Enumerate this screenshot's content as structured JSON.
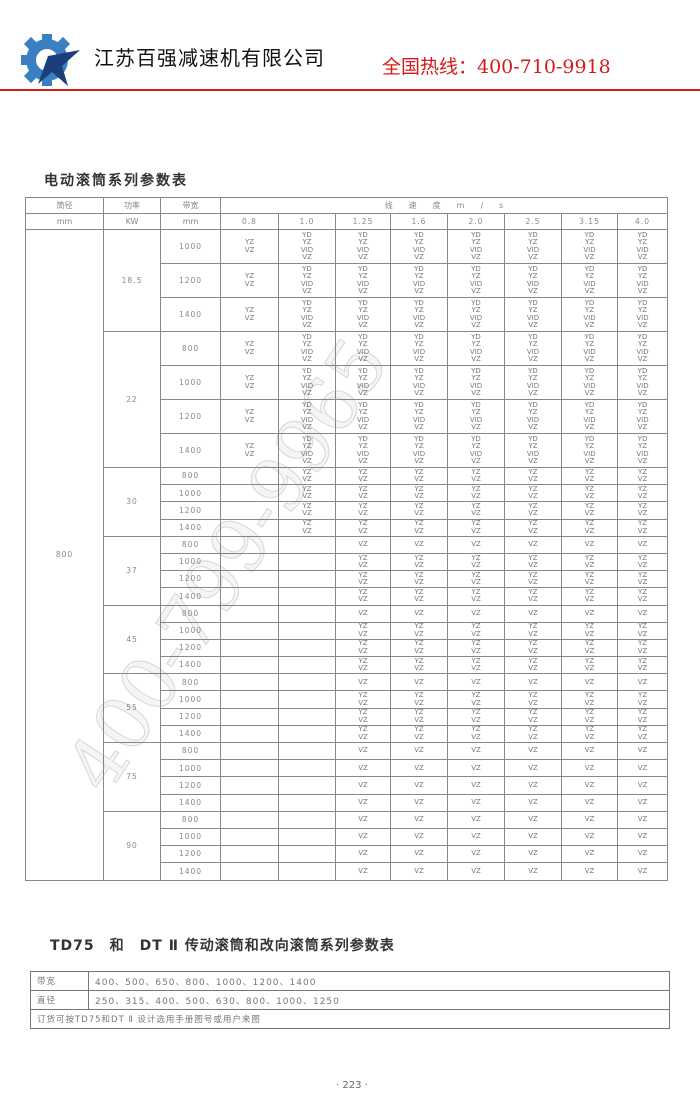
{
  "header": {
    "company": "江苏百强减速机有限公司",
    "hotline": "全国热线：400-710-9918",
    "brand_color": "#d51a1a",
    "logo_colors": [
      "#3a7fc2",
      "#1b3f7a"
    ]
  },
  "table1": {
    "title": "电动滚筒系列参数表",
    "headers": {
      "diameter": "筒径",
      "diameter_unit": "mm",
      "power": "功率",
      "power_unit": "KW",
      "width": "带宽",
      "width_unit": "mm",
      "speed": "线　　速　　度　　m　　/　　s"
    },
    "speeds": [
      "0.8",
      "1.0",
      "1.25",
      "1.6",
      "2.0",
      "2.5",
      "3.15",
      "4.0"
    ],
    "diameter": "800",
    "groups": [
      {
        "kw": "18.5",
        "rows": [
          {
            "width": "1000",
            "cells": [
              "YZ\nVZ",
              "YD\nYZ\nVID\nVZ",
              "YD\nYZ\nVID\nVZ",
              "YD\nYZ\nVID\nVZ",
              "YD\nYZ\nVID\nVZ",
              "YD\nYZ\nVID\nVZ",
              "YD\nYZ\nVID\nVZ",
              "YD\nYZ\nVID\nVZ"
            ]
          },
          {
            "width": "1200",
            "cells": [
              "YZ\nVZ",
              "YD\nYZ\nVID\nVZ",
              "YD\nYZ\nVID\nVZ",
              "YD\nYZ\nVID\nVZ",
              "YD\nYZ\nVID\nVZ",
              "YD\nYZ\nVID\nVZ",
              "YD\nYZ\nVID\nVZ",
              "YD\nYZ\nVID\nVZ"
            ]
          },
          {
            "width": "1400",
            "cells": [
              "YZ\nVZ",
              "YD\nYZ\nVID\nVZ",
              "YD\nYZ\nVID\nVZ",
              "YD\nYZ\nVID\nVZ",
              "YD\nYZ\nVID\nVZ",
              "YD\nYZ\nVID\nVZ",
              "YD\nYZ\nVID\nVZ",
              "YD\nYZ\nVID\nVZ"
            ]
          }
        ]
      },
      {
        "kw": "22",
        "rows": [
          {
            "width": "800",
            "cells": [
              "YZ\nVZ",
              "YD\nYZ\nVID\nVZ",
              "YD\nYZ\nVID\nVZ",
              "YD\nYZ\nVID\nVZ",
              "YD\nYZ\nVID\nVZ",
              "YD\nYZ\nVID\nVZ",
              "YD\nYZ\nVID\nVZ",
              "YD\nYZ\nVID\nVZ"
            ]
          },
          {
            "width": "1000",
            "cells": [
              "YZ\nVZ",
              "YD\nYZ\nVID\nVZ",
              "YD\nYZ\nVID\nVZ",
              "YD\nYZ\nVID\nVZ",
              "YD\nYZ\nVID\nVZ",
              "YD\nYZ\nVID\nVZ",
              "YD\nYZ\nVID\nVZ",
              "YD\nYZ\nVID\nVZ"
            ]
          },
          {
            "width": "1200",
            "cells": [
              "YZ\nVZ",
              "YD\nYZ\nVID\nVZ",
              "YD\nYZ\nVID\nVZ",
              "YD\nYZ\nVID\nVZ",
              "YD\nYZ\nVID\nVZ",
              "YD\nYZ\nVID\nVZ",
              "YD\nYZ\nVID\nVZ",
              "YD\nYZ\nVID\nVZ"
            ]
          },
          {
            "width": "1400",
            "cells": [
              "YZ\nVZ",
              "YD\nYZ\nVID\nVZ",
              "YD\nYZ\nVID\nVZ",
              "YD\nYZ\nVID\nVZ",
              "YD\nYZ\nVID\nVZ",
              "YD\nYZ\nVID\nVZ",
              "YD\nYZ\nVID\nVZ",
              "YD\nYZ\nVID\nVZ"
            ]
          }
        ]
      },
      {
        "kw": "30",
        "rows": [
          {
            "width": "800",
            "cells": [
              "",
              "YZ\nVZ",
              "YZ\nVZ",
              "YZ\nVZ",
              "YZ\nVZ",
              "YZ\nVZ",
              "YZ\nVZ",
              "YZ\nVZ"
            ]
          },
          {
            "width": "1000",
            "cells": [
              "",
              "YZ\nVZ",
              "YZ\nVZ",
              "YZ\nVZ",
              "YZ\nVZ",
              "YZ\nVZ",
              "YZ\nVZ",
              "YZ\nVZ"
            ]
          },
          {
            "width": "1200",
            "cells": [
              "",
              "YZ\nVZ",
              "YZ\nVZ",
              "YZ\nVZ",
              "YZ\nVZ",
              "YZ\nVZ",
              "YZ\nVZ",
              "YZ\nVZ"
            ]
          },
          {
            "width": "1400",
            "cells": [
              "",
              "YZ\nVZ",
              "YZ\nVZ",
              "YZ\nVZ",
              "YZ\nVZ",
              "YZ\nVZ",
              "YZ\nVZ",
              "YZ\nVZ"
            ]
          }
        ]
      },
      {
        "kw": "37",
        "rows": [
          {
            "width": "800",
            "cells": [
              "",
              "",
              "VZ",
              "VZ",
              "VZ",
              "VZ",
              "VZ",
              "VZ"
            ]
          },
          {
            "width": "1000",
            "cells": [
              "",
              "",
              "YZ\nVZ",
              "YZ\nVZ",
              "YZ\nVZ",
              "YZ\nVZ",
              "YZ\nVZ",
              "YZ\nVZ"
            ]
          },
          {
            "width": "1200",
            "cells": [
              "",
              "",
              "YZ\nVZ",
              "YZ\nVZ",
              "YZ\nVZ",
              "YZ\nVZ",
              "YZ\nVZ",
              "YZ\nVZ"
            ]
          },
          {
            "width": "1400",
            "cells": [
              "",
              "",
              "YZ\nVZ",
              "YZ\nVZ",
              "YZ\nVZ",
              "YZ\nVZ",
              "YZ\nVZ",
              "YZ\nVZ"
            ]
          }
        ]
      },
      {
        "kw": "45",
        "rows": [
          {
            "width": "800",
            "cells": [
              "",
              "",
              "VZ",
              "VZ",
              "VZ",
              "VZ",
              "VZ",
              "VZ"
            ]
          },
          {
            "width": "1000",
            "cells": [
              "",
              "",
              "YZ\nVZ",
              "YZ\nVZ",
              "YZ\nVZ",
              "YZ\nVZ",
              "YZ\nVZ",
              "YZ\nVZ"
            ]
          },
          {
            "width": "1200",
            "cells": [
              "",
              "",
              "YZ\nVZ",
              "YZ\nVZ",
              "YZ\nVZ",
              "YZ\nVZ",
              "YZ\nVZ",
              "YZ\nVZ"
            ]
          },
          {
            "width": "1400",
            "cells": [
              "",
              "",
              "YZ\nVZ",
              "YZ\nVZ",
              "YZ\nVZ",
              "YZ\nVZ",
              "YZ\nVZ",
              "YZ\nVZ"
            ]
          }
        ]
      },
      {
        "kw": "55",
        "rows": [
          {
            "width": "800",
            "cells": [
              "",
              "",
              "VZ",
              "VZ",
              "VZ",
              "VZ",
              "VZ",
              "VZ"
            ]
          },
          {
            "width": "1000",
            "cells": [
              "",
              "",
              "YZ\nVZ",
              "YZ\nVZ",
              "YZ\nVZ",
              "YZ\nVZ",
              "YZ\nVZ",
              "YZ\nVZ"
            ]
          },
          {
            "width": "1200",
            "cells": [
              "",
              "",
              "YZ\nVZ",
              "YZ\nVZ",
              "YZ\nVZ",
              "YZ\nVZ",
              "YZ\nVZ",
              "YZ\nVZ"
            ]
          },
          {
            "width": "1400",
            "cells": [
              "",
              "",
              "YZ\nVZ",
              "YZ\nVZ",
              "YZ\nVZ",
              "YZ\nVZ",
              "YZ\nVZ",
              "YZ\nVZ"
            ]
          }
        ]
      },
      {
        "kw": "75",
        "rows": [
          {
            "width": "800",
            "cells": [
              "",
              "",
              "VZ",
              "VZ",
              "VZ",
              "VZ",
              "VZ",
              "VZ"
            ]
          },
          {
            "width": "1000",
            "cells": [
              "",
              "",
              "VZ",
              "VZ",
              "VZ",
              "VZ",
              "VZ",
              "VZ"
            ]
          },
          {
            "width": "1200",
            "cells": [
              "",
              "",
              "VZ",
              "VZ",
              "VZ",
              "VZ",
              "VZ",
              "VZ"
            ]
          },
          {
            "width": "1400",
            "cells": [
              "",
              "",
              "VZ",
              "VZ",
              "VZ",
              "VZ",
              "VZ",
              "VZ"
            ]
          }
        ]
      },
      {
        "kw": "90",
        "rows": [
          {
            "width": "800",
            "cells": [
              "",
              "",
              "VZ",
              "VZ",
              "VZ",
              "VZ",
              "VZ",
              "VZ"
            ]
          },
          {
            "width": "1000",
            "cells": [
              "",
              "",
              "VZ",
              "VZ",
              "VZ",
              "VZ",
              "VZ",
              "VZ"
            ]
          },
          {
            "width": "1200",
            "cells": [
              "",
              "",
              "VZ",
              "VZ",
              "VZ",
              "VZ",
              "VZ",
              "VZ"
            ]
          },
          {
            "width": "1400",
            "cells": [
              "",
              "",
              "VZ",
              "VZ",
              "VZ",
              "VZ",
              "VZ",
              "VZ"
            ]
          }
        ]
      }
    ]
  },
  "watermark": "400-799-9965",
  "table2": {
    "title": "TD75　和　DT Ⅱ 传动滚筒和改向滚筒系列参数表",
    "rows": [
      {
        "key": "带宽",
        "value": "400、500、650、800、1000、1200、1400"
      },
      {
        "key": "直径",
        "value": "250、315、400、500、630、800、1000、1250"
      }
    ],
    "note": "订货可按TD75和DT Ⅱ 设计选用手册图号或用户来图"
  },
  "page_number": "· 223 ·"
}
